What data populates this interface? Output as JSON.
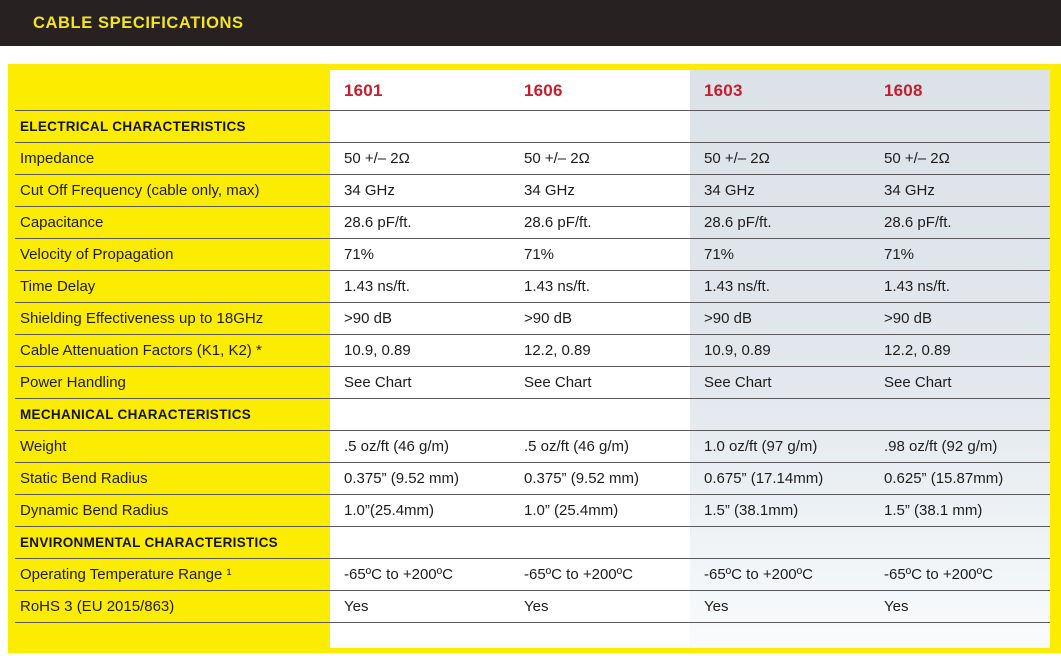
{
  "header": {
    "title": "CABLE SPECIFICATIONS"
  },
  "table": {
    "columns": [
      "1601",
      "1606",
      "1603",
      "1608"
    ],
    "rows": [
      {
        "label": "ELECTRICAL CHARACTERISTICS",
        "type": "section",
        "values": [
          "",
          "",
          "",
          ""
        ]
      },
      {
        "label": "Impedance",
        "type": "data",
        "values": [
          "50 +/– 2Ω",
          "50 +/– 2Ω",
          "50 +/– 2Ω",
          "50 +/– 2Ω"
        ]
      },
      {
        "label": "Cut Off Frequency (cable only, max)",
        "type": "data",
        "values": [
          "34 GHz",
          "34 GHz",
          "34 GHz",
          "34 GHz"
        ]
      },
      {
        "label": "Capacitance",
        "type": "data",
        "values": [
          "28.6 pF/ft.",
          "28.6 pF/ft.",
          "28.6 pF/ft.",
          "28.6 pF/ft."
        ]
      },
      {
        "label": "Velocity of Propagation",
        "type": "data",
        "values": [
          "71%",
          "71%",
          "71%",
          "71%"
        ]
      },
      {
        "label": "Time Delay",
        "type": "data",
        "values": [
          "1.43 ns/ft.",
          "1.43 ns/ft.",
          "1.43 ns/ft.",
          "1.43 ns/ft."
        ]
      },
      {
        "label": "Shielding Effectiveness up to 18GHz",
        "type": "data",
        "values": [
          ">90 dB",
          ">90 dB",
          ">90 dB",
          ">90 dB"
        ]
      },
      {
        "label": "Cable Attenuation Factors (K1, K2) *",
        "type": "data",
        "values": [
          "10.9, 0.89",
          "12.2, 0.89",
          "10.9, 0.89",
          "12.2, 0.89"
        ]
      },
      {
        "label": "Power Handling",
        "type": "data",
        "values": [
          "See Chart",
          "See Chart",
          "See Chart",
          "See Chart"
        ]
      },
      {
        "label": "MECHANICAL CHARACTERISTICS",
        "type": "section",
        "values": [
          "",
          "",
          "",
          ""
        ]
      },
      {
        "label": "Weight",
        "type": "data",
        "values": [
          ".5 oz/ft (46 g/m)",
          ".5 oz/ft (46 g/m)",
          "1.0 oz/ft (97 g/m)",
          ".98 oz/ft (92 g/m)"
        ]
      },
      {
        "label": "Static Bend Radius",
        "type": "data",
        "values": [
          "0.375” (9.52 mm)",
          "0.375” (9.52 mm)",
          "0.675” (17.14mm)",
          "0.625” (15.87mm)"
        ]
      },
      {
        "label": "Dynamic Bend Radius",
        "type": "data",
        "values": [
          "1.0”(25.4mm)",
          "1.0” (25.4mm)",
          "1.5” (38.1mm)",
          "1.5” (38.1 mm)"
        ]
      },
      {
        "label": "ENVIRONMENTAL CHARACTERISTICS",
        "type": "section",
        "values": [
          "",
          "",
          "",
          ""
        ]
      },
      {
        "label": "Operating Temperature Range ¹",
        "type": "data",
        "values": [
          "-65ºC to +200ºC",
          "-65ºC to +200ºC",
          "-65ºC to +200ºC",
          "-65ºC to +200ºC"
        ]
      },
      {
        "label": "RoHS 3 (EU 2015/863)",
        "type": "data",
        "values": [
          "Yes",
          "Yes",
          "Yes",
          "Yes"
        ]
      }
    ]
  },
  "colors": {
    "title_bar": "#272122",
    "title_text": "#f4e41d",
    "frame_yellow": "#fcec00",
    "column_header_red": "#c3202f",
    "shaded_band": "#dbe2e8",
    "row_line": "#5a595b",
    "body_text": "#1f1d1c"
  }
}
